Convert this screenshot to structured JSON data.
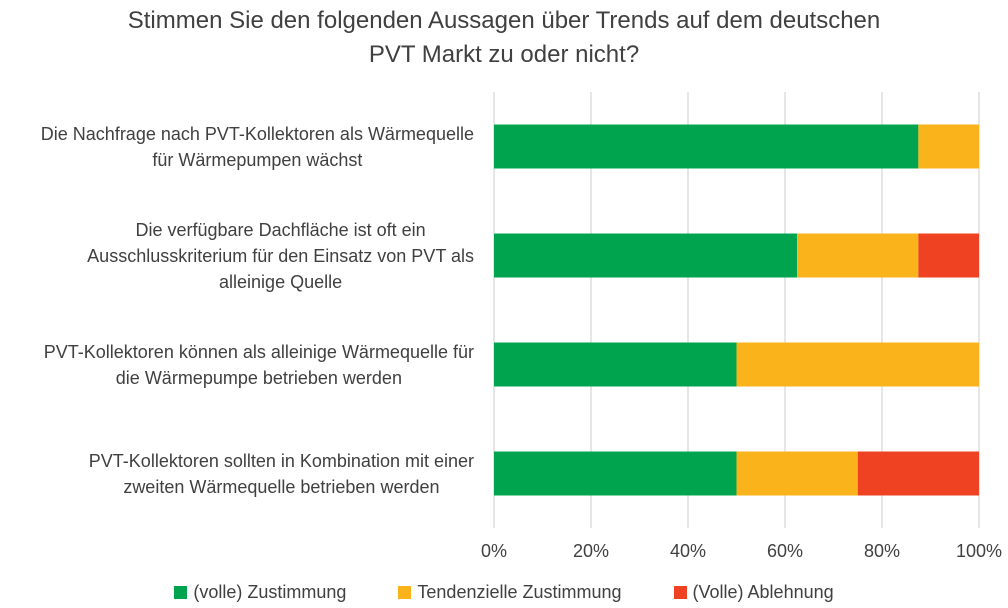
{
  "chart_data": {
    "type": "bar",
    "orientation": "horizontal",
    "stacked": "100%",
    "title": "Stimmen Sie den folgenden Aussagen über Trends auf dem deutschen PVT Markt zu oder nicht?",
    "title_lines": [
      "Stimmen Sie den folgenden Aussagen über Trends auf dem deutschen",
      "PVT Markt zu oder nicht?"
    ],
    "categories": [
      "Die Nachfrage nach PVT-Kollektoren als Wärmequelle für Wärmepumpen wächst",
      "Die verfügbare Dachfläche ist oft ein Ausschlusskriterium für den Einsatz von PVT als alleinige Quelle",
      "PVT-Kollektoren können als alleinige Wärmequelle für die Wärmepumpe betrieben werden",
      "PVT-Kollektoren sollten in Kombination mit einer zweiten Wärmequelle betrieben werden"
    ],
    "category_lines": [
      [
        "Die Nachfrage nach PVT-Kollektoren als Wärmequelle",
        "für Wärmepumpen wächst"
      ],
      [
        "Die verfügbare Dachfläche ist oft ein",
        "Ausschlusskriterium für den Einsatz von PVT als",
        "alleinige Quelle"
      ],
      [
        "PVT-Kollektoren können als alleinige Wärmequelle für",
        "die Wärmepumpe betrieben werden"
      ],
      [
        "PVT-Kollektoren sollten in Kombination mit einer",
        "zweiten Wärmequelle betrieben werden"
      ]
    ],
    "series": [
      {
        "name": "(volle) Zustimmung",
        "color": "#00A44F",
        "values": [
          87.5,
          62.5,
          50,
          50
        ]
      },
      {
        "name": "Tendenzielle Zustimmung",
        "color": "#FBB31B",
        "values": [
          12.5,
          25,
          50,
          25
        ]
      },
      {
        "name": "(Volle) Ablehnung",
        "color": "#EE4223",
        "values": [
          0,
          12.5,
          0,
          25
        ]
      }
    ],
    "xlabel": "",
    "ylabel": "",
    "xlim": [
      0,
      100
    ],
    "x_ticks": [
      "0%",
      "20%",
      "40%",
      "60%",
      "80%",
      "100%"
    ],
    "grid": true,
    "grid_color": "#D9D9D9",
    "legend_position": "bottom"
  }
}
